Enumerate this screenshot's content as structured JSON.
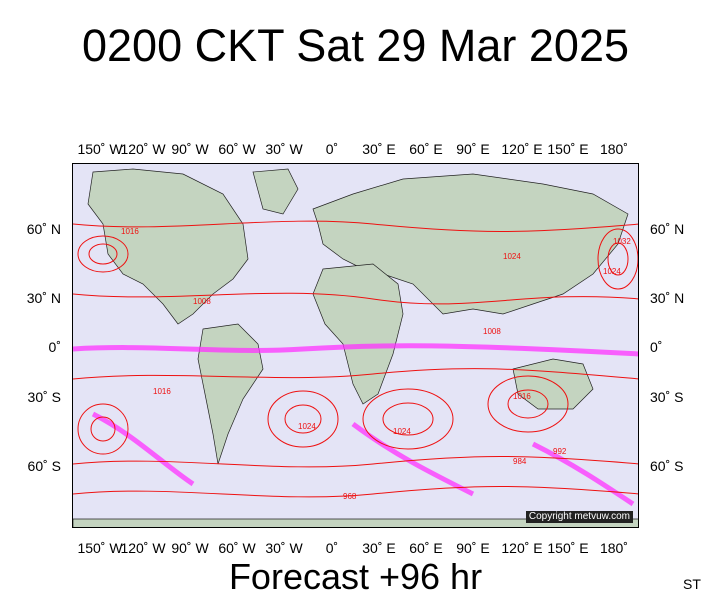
{
  "title": "0200 CKT Sat 29 Mar 2025",
  "footer": "Forecast +96 hr",
  "corner_label": "ST",
  "copyright": "Copyright metvuw.com",
  "lon_ticks": [
    "150˚ W",
    "120˚ W",
    "90˚ W",
    "60˚ W",
    "30˚ W",
    "0˚",
    "30˚ E",
    "60˚ E",
    "90˚ E",
    "120˚ E",
    "150˚ E",
    "180˚"
  ],
  "lat_ticks": [
    "60˚ N",
    "30˚ N",
    "0˚",
    "30˚ S",
    "60˚ S"
  ],
  "colors": {
    "isobar": "#ee1111",
    "land": "#c4d4c0",
    "ocean": "#e4e4f6",
    "precip": "#ff33ff"
  },
  "pressure_labels": [
    "1016",
    "1024",
    "1008",
    "1032",
    "1016",
    "1024",
    "1008",
    "1016",
    "1024",
    "1024",
    "984",
    "968",
    "992"
  ]
}
